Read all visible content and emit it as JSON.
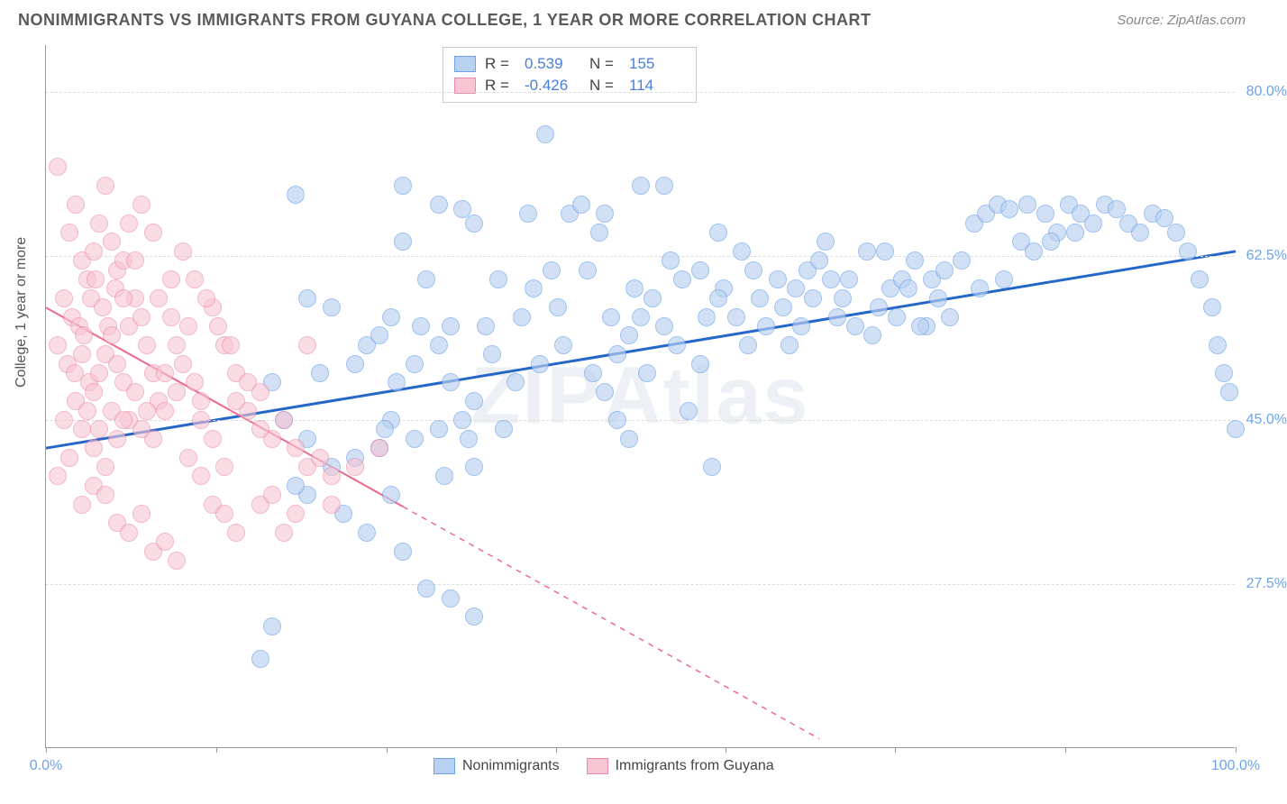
{
  "title": "NONIMMIGRANTS VS IMMIGRANTS FROM GUYANA COLLEGE, 1 YEAR OR MORE CORRELATION CHART",
  "source_prefix": "Source: ",
  "source_link": "ZipAtlas.com",
  "ylabel": "College, 1 year or more",
  "watermark": "ZIPAtlas",
  "chart": {
    "x_range": [
      0,
      100
    ],
    "y_range": [
      10,
      85
    ],
    "y_ticks": [
      27.5,
      45.0,
      62.5,
      80.0
    ],
    "y_tick_labels": [
      "27.5%",
      "45.0%",
      "62.5%",
      "80.0%"
    ],
    "x_ticks": [
      0,
      14.3,
      28.6,
      42.9,
      57.1,
      71.4,
      85.7,
      100
    ],
    "x_left_label": "0.0%",
    "x_right_label": "100.0%",
    "series": [
      {
        "name": "Nonimmigrants",
        "fill": "#b9d1f0",
        "stroke": "#6ea3e8",
        "r": 10,
        "opacity": 0.65,
        "R": "0.539",
        "N": "155",
        "trend": {
          "x1": 0,
          "y1": 42,
          "x2": 100,
          "y2": 63,
          "color": "#2566c9",
          "width": 3,
          "dash_from": null
        },
        "points": [
          [
            18,
            19.5
          ],
          [
            19,
            23
          ],
          [
            34,
            26
          ],
          [
            32,
            27
          ],
          [
            36,
            24
          ],
          [
            30,
            31
          ],
          [
            27,
            33
          ],
          [
            25,
            35
          ],
          [
            29,
            37
          ],
          [
            22,
            37
          ],
          [
            21,
            38
          ],
          [
            24,
            40
          ],
          [
            26,
            41
          ],
          [
            28,
            42
          ],
          [
            22,
            43
          ],
          [
            20,
            45
          ],
          [
            29,
            45
          ],
          [
            36,
            40
          ],
          [
            31,
            43
          ],
          [
            33,
            44
          ],
          [
            19,
            49
          ],
          [
            23,
            50
          ],
          [
            26,
            51
          ],
          [
            27,
            53
          ],
          [
            28,
            54
          ],
          [
            29,
            56
          ],
          [
            24,
            57
          ],
          [
            22,
            58
          ],
          [
            21,
            69
          ],
          [
            30,
            64
          ],
          [
            32,
            60
          ],
          [
            33,
            53
          ],
          [
            31,
            51
          ],
          [
            34,
            49
          ],
          [
            36,
            47
          ],
          [
            35,
            45
          ],
          [
            37,
            55
          ],
          [
            40,
            56
          ],
          [
            41,
            59
          ],
          [
            43,
            57
          ],
          [
            44,
            67
          ],
          [
            45,
            68
          ],
          [
            48,
            52
          ],
          [
            49,
            54
          ],
          [
            50,
            56
          ],
          [
            51,
            58
          ],
          [
            52,
            55
          ],
          [
            53,
            53
          ],
          [
            54,
            46
          ],
          [
            55,
            51
          ],
          [
            56,
            40
          ],
          [
            46,
            50
          ],
          [
            47,
            48
          ],
          [
            48,
            45
          ],
          [
            49,
            43
          ],
          [
            34,
            55
          ],
          [
            36,
            66
          ],
          [
            38,
            60
          ],
          [
            33,
            68
          ],
          [
            35,
            67.5
          ],
          [
            30,
            70
          ],
          [
            42,
            75.5
          ],
          [
            50,
            70
          ],
          [
            52,
            70
          ],
          [
            55,
            61
          ],
          [
            57,
            59
          ],
          [
            58,
            56
          ],
          [
            59,
            53
          ],
          [
            60,
            58
          ],
          [
            62,
            57
          ],
          [
            63,
            59
          ],
          [
            64,
            61
          ],
          [
            65,
            62
          ],
          [
            66,
            60
          ],
          [
            67,
            58
          ],
          [
            68,
            55
          ],
          [
            69,
            63
          ],
          [
            70,
            57
          ],
          [
            71,
            59
          ],
          [
            72,
            60
          ],
          [
            73,
            62
          ],
          [
            74,
            55
          ],
          [
            75,
            58
          ],
          [
            76,
            56
          ],
          [
            77,
            62
          ],
          [
            78,
            66
          ],
          [
            79,
            67
          ],
          [
            80,
            68
          ],
          [
            81,
            67.5
          ],
          [
            82,
            64
          ],
          [
            83,
            63
          ],
          [
            84,
            67
          ],
          [
            85,
            65
          ],
          [
            86,
            68
          ],
          [
            87,
            67
          ],
          [
            88,
            66
          ],
          [
            89,
            68
          ],
          [
            90,
            67.5
          ],
          [
            91,
            66
          ],
          [
            92,
            65
          ],
          [
            93,
            67
          ],
          [
            94,
            66.5
          ],
          [
            95,
            65
          ],
          [
            96,
            63
          ],
          [
            97,
            60
          ],
          [
            98,
            57
          ],
          [
            98.5,
            53
          ],
          [
            99,
            50
          ],
          [
            99.5,
            48
          ],
          [
            100,
            44
          ],
          [
            73.5,
            55
          ],
          [
            69.5,
            54
          ],
          [
            66.5,
            56
          ],
          [
            71.5,
            56
          ],
          [
            74.5,
            60
          ],
          [
            60.5,
            55
          ],
          [
            58.5,
            63
          ],
          [
            56.5,
            58
          ],
          [
            61.5,
            60
          ],
          [
            63.5,
            55
          ],
          [
            65.5,
            64
          ],
          [
            67.5,
            60
          ],
          [
            70.5,
            63
          ],
          [
            72.5,
            59
          ],
          [
            75.5,
            61
          ],
          [
            78.5,
            59
          ],
          [
            80.5,
            60
          ],
          [
            82.5,
            68
          ],
          [
            84.5,
            64
          ],
          [
            86.5,
            65
          ],
          [
            37.5,
            52
          ],
          [
            39.5,
            49
          ],
          [
            41.5,
            51
          ],
          [
            43.5,
            53
          ],
          [
            45.5,
            61
          ],
          [
            47.5,
            56
          ],
          [
            50.5,
            50
          ],
          [
            53.5,
            60
          ],
          [
            56.5,
            65
          ],
          [
            33.5,
            39
          ],
          [
            35.5,
            43
          ],
          [
            38.5,
            44
          ],
          [
            40.5,
            67
          ],
          [
            42.5,
            61
          ],
          [
            46.5,
            65
          ],
          [
            47,
            67
          ],
          [
            49.5,
            59
          ],
          [
            52.5,
            62
          ],
          [
            55.5,
            56
          ],
          [
            59.5,
            61
          ],
          [
            62.5,
            53
          ],
          [
            64.5,
            58
          ],
          [
            31.5,
            55
          ],
          [
            29.5,
            49
          ],
          [
            28.5,
            44
          ]
        ]
      },
      {
        "name": "Immigrants from Guyana",
        "fill": "#f7c5d4",
        "stroke": "#ec89a5",
        "r": 10,
        "opacity": 0.6,
        "R": "-0.426",
        "N": "114",
        "trend": {
          "x1": 0,
          "y1": 57,
          "x2": 65,
          "y2": 11,
          "color": "#ec6a8e",
          "width": 2,
          "dash_from": 30
        },
        "points": [
          [
            1,
            72
          ],
          [
            2,
            65
          ],
          [
            2.5,
            68
          ],
          [
            3,
            62
          ],
          [
            3.5,
            60
          ],
          [
            4,
            63
          ],
          [
            4.5,
            66
          ],
          [
            5,
            70
          ],
          [
            5.5,
            64
          ],
          [
            6,
            61
          ],
          [
            1.5,
            58
          ],
          [
            2.2,
            56
          ],
          [
            2.8,
            55
          ],
          [
            3.2,
            54
          ],
          [
            3.8,
            58
          ],
          [
            4.2,
            60
          ],
          [
            4.8,
            57
          ],
          [
            5.2,
            55
          ],
          [
            5.8,
            59
          ],
          [
            6.5,
            62
          ],
          [
            1,
            53
          ],
          [
            1.8,
            51
          ],
          [
            2.4,
            50
          ],
          [
            3,
            52
          ],
          [
            3.6,
            49
          ],
          [
            4,
            48
          ],
          [
            4.5,
            50
          ],
          [
            5,
            52
          ],
          [
            5.5,
            54
          ],
          [
            6,
            51
          ],
          [
            6.5,
            49
          ],
          [
            7,
            55
          ],
          [
            7.5,
            58
          ],
          [
            8,
            56
          ],
          [
            8.5,
            53
          ],
          [
            9,
            50
          ],
          [
            9.5,
            47
          ],
          [
            10,
            46
          ],
          [
            10.5,
            56
          ],
          [
            11,
            53
          ],
          [
            11.5,
            51
          ],
          [
            12,
            55
          ],
          [
            12.5,
            49
          ],
          [
            13,
            47
          ],
          [
            14,
            57
          ],
          [
            15,
            53
          ],
          [
            16,
            50
          ],
          [
            17,
            46
          ],
          [
            18,
            48
          ],
          [
            19,
            43
          ],
          [
            20,
            45
          ],
          [
            21,
            42
          ],
          [
            22,
            40
          ],
          [
            23,
            41
          ],
          [
            24,
            39
          ],
          [
            9,
            43
          ],
          [
            8,
            44
          ],
          [
            7,
            45
          ],
          [
            6,
            43
          ],
          [
            5,
            40
          ],
          [
            4,
            42
          ],
          [
            3,
            44
          ],
          [
            2,
            41
          ],
          [
            1,
            39
          ],
          [
            1.5,
            45
          ],
          [
            2.5,
            47
          ],
          [
            3.5,
            46
          ],
          [
            4.5,
            44
          ],
          [
            5.5,
            46
          ],
          [
            6.5,
            45
          ],
          [
            7.5,
            48
          ],
          [
            8.5,
            46
          ],
          [
            10,
            50
          ],
          [
            11,
            48
          ],
          [
            13,
            45
          ],
          [
            14,
            43
          ],
          [
            15,
            40
          ],
          [
            16,
            47
          ],
          [
            17,
            49
          ],
          [
            18,
            44
          ],
          [
            3,
            36
          ],
          [
            4,
            38
          ],
          [
            5,
            37
          ],
          [
            6,
            34
          ],
          [
            7,
            33
          ],
          [
            8,
            35
          ],
          [
            9,
            31
          ],
          [
            10,
            32
          ],
          [
            11,
            30
          ],
          [
            12,
            41
          ],
          [
            13,
            39
          ],
          [
            14,
            36
          ],
          [
            15,
            35
          ],
          [
            16,
            33
          ],
          [
            18,
            36
          ],
          [
            19,
            37
          ],
          [
            20,
            33
          ],
          [
            21,
            35
          ],
          [
            24,
            36
          ],
          [
            26,
            40
          ],
          [
            28,
            42
          ],
          [
            22,
            53
          ],
          [
            12.5,
            60
          ],
          [
            13.5,
            58
          ],
          [
            14.5,
            55
          ],
          [
            15.5,
            53
          ],
          [
            9,
            65
          ],
          [
            8,
            68
          ],
          [
            7,
            66
          ],
          [
            10.5,
            60
          ],
          [
            11.5,
            63
          ],
          [
            6.5,
            58
          ],
          [
            7.5,
            62
          ],
          [
            9.5,
            58
          ]
        ]
      }
    ]
  },
  "legend_top": {
    "R_label": "R =",
    "N_label": "N ="
  },
  "legend_bottom_labels": [
    "Nonimmigrants",
    "Immigrants from Guyana"
  ]
}
